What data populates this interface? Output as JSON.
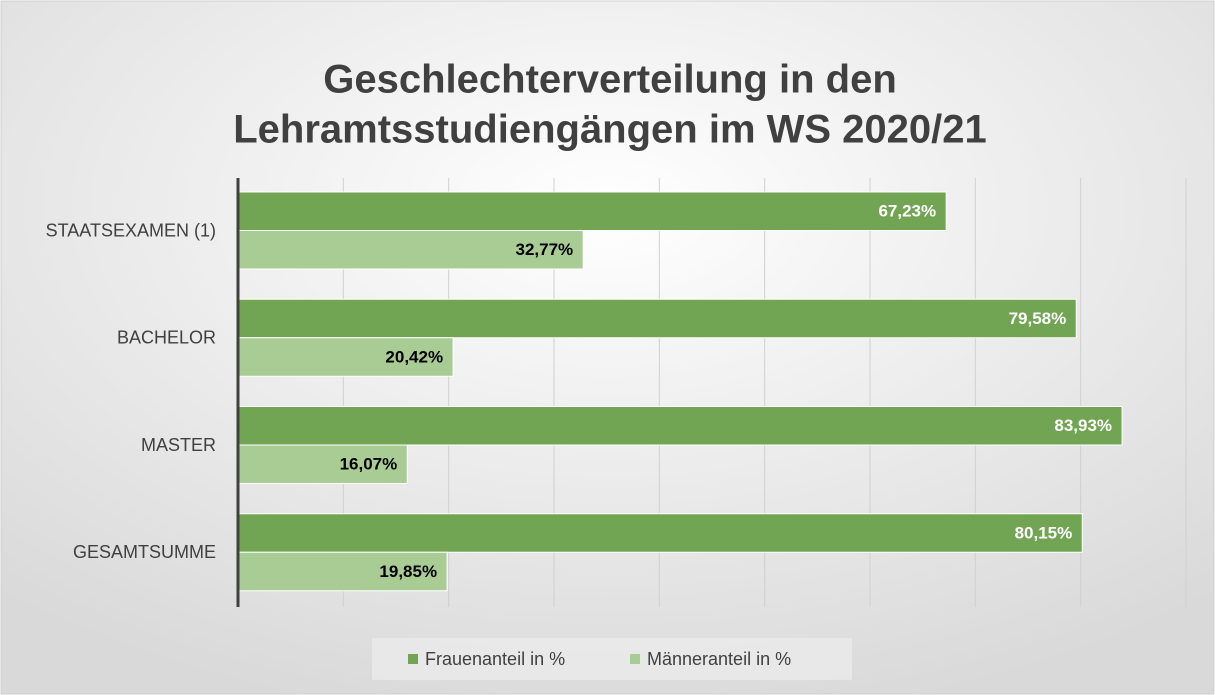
{
  "chart_data": {
    "type": "hbar",
    "title": [
      "Geschlechterverteilung in den",
      "Lehramtsstudiengängen im WS 2020/21"
    ],
    "categories": [
      "STAATSEXAMEN (1)",
      "BACHELOR",
      "MASTER",
      "GESAMTSUMME"
    ],
    "series": [
      {
        "name": "Frauenanteil in %",
        "color": "#72a553",
        "label_color": "#ffffff",
        "values": [
          67.23,
          79.58,
          83.93,
          80.15
        ],
        "value_labels": [
          "67,23%",
          "79,58%",
          "83,93%",
          "80,15%"
        ]
      },
      {
        "name": "Männeranteil in %",
        "color": "#a9cc94",
        "label_color": "#000000",
        "values": [
          32.77,
          20.42,
          16.07,
          19.85
        ],
        "value_labels": [
          "32,77%",
          "20,42%",
          "16,07%",
          "19,85%"
        ]
      }
    ],
    "xlim": [
      0,
      90
    ],
    "xticks": [
      0,
      10,
      20,
      30,
      40,
      50,
      60,
      70,
      80,
      90
    ],
    "grid": true,
    "legend": "bottom"
  }
}
